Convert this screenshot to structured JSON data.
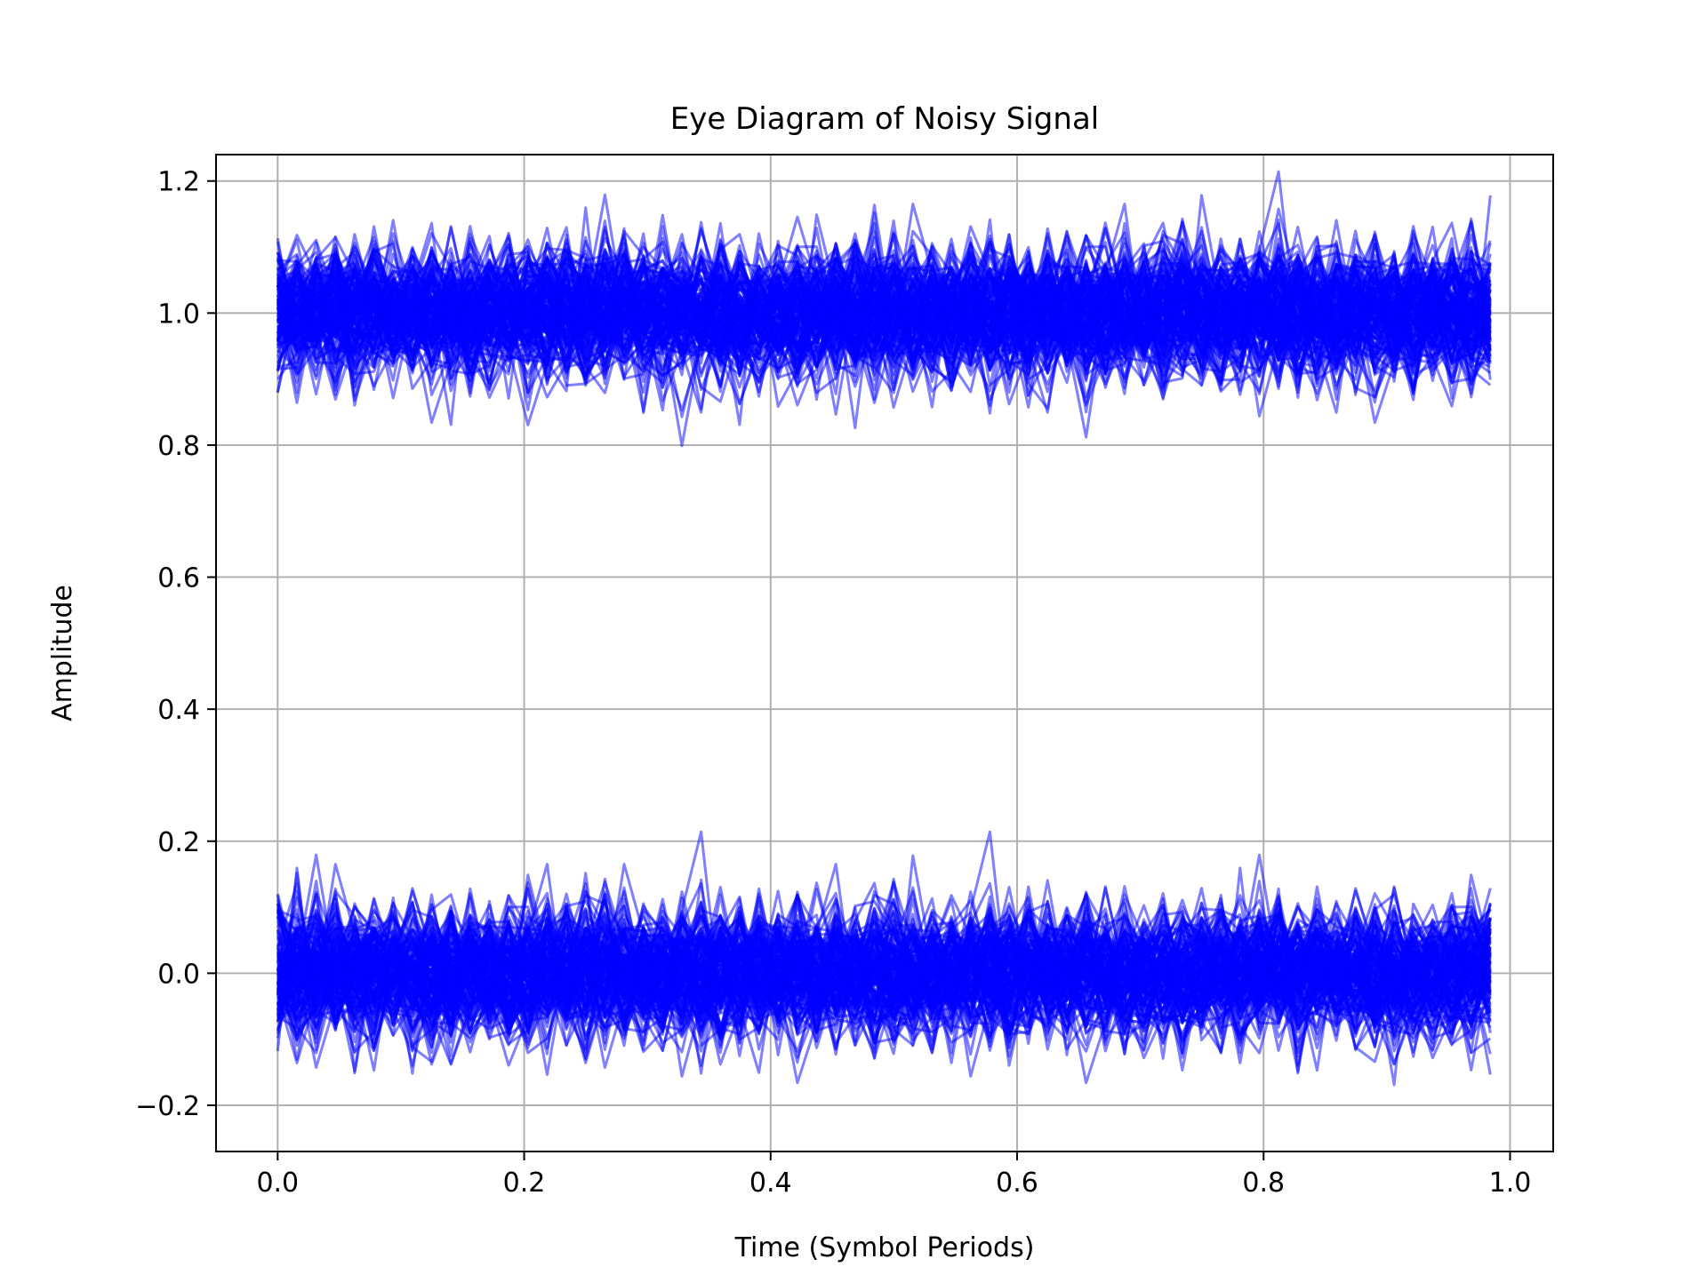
{
  "chart_data": {
    "type": "line",
    "title": "Eye Diagram of Noisy Signal",
    "xlabel": "Time (Symbol Periods)",
    "ylabel": "Amplitude",
    "xlim": [
      -0.05,
      1.035
    ],
    "ylim": [
      -0.27,
      1.24
    ],
    "xticks": [
      0.0,
      0.2,
      0.4,
      0.6,
      0.8,
      1.0
    ],
    "xtick_labels": [
      "0.0",
      "0.2",
      "0.4",
      "0.6",
      "0.8",
      "1.0"
    ],
    "yticks": [
      -0.2,
      0.0,
      0.2,
      0.4,
      0.6,
      0.8,
      1.0,
      1.2
    ],
    "ytick_labels": [
      "−0.2",
      "0.0",
      "0.2",
      "0.4",
      "0.6",
      "0.8",
      "1.0",
      "1.2"
    ],
    "grid": true,
    "legend": "none",
    "line_color": "#0000ff",
    "line_opacity": 0.5,
    "time_start": 0.0,
    "time_end": 0.984,
    "series_groups": [
      {
        "level": 1.0,
        "noise_std": 0.05,
        "trace_count": 150
      },
      {
        "level": 0.0,
        "noise_std": 0.05,
        "trace_count": 150
      }
    ]
  }
}
